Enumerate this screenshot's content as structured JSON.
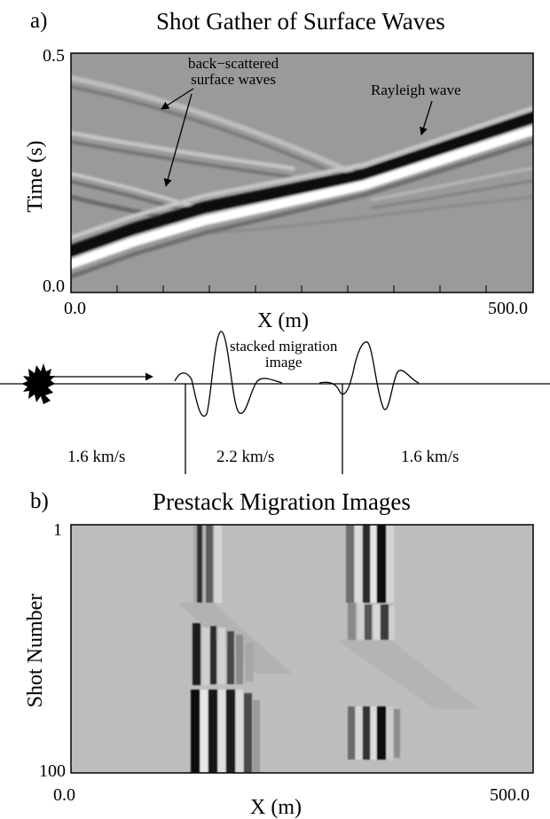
{
  "panel_a": {
    "tag": "a)",
    "title": "Shot Gather of Surface Waves",
    "ylabel": "Time (s)",
    "xlabel": "X (m)",
    "y_top_tick": "0.5",
    "y_bottom_tick": "0.0",
    "x_left_tick": "0.0",
    "x_right_tick": "500.0",
    "annotation_backscatter_line1": "back−scattered",
    "annotation_backscatter_line2": "surface waves",
    "annotation_rayleigh": "Rayleigh wave"
  },
  "schematic": {
    "annotation_line1": "stacked migration",
    "annotation_line2": "image",
    "velocity_left": "1.6 km/s",
    "velocity_middle": "2.2 km/s",
    "velocity_right": "1.6 km/s"
  },
  "panel_b": {
    "tag": "b)",
    "title": "Prestack Migration Images",
    "ylabel": "Shot Number",
    "xlabel": "X (m)",
    "y_top_tick": "1",
    "y_bottom_tick": "100",
    "x_left_tick": "0.0",
    "x_right_tick": "500.0"
  },
  "colors": {
    "panel_a_background": "#9a9a9a",
    "panel_b_background": "#bdbdbd"
  }
}
